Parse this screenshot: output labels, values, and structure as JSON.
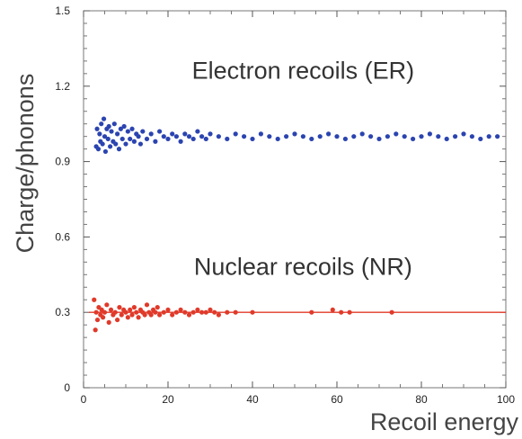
{
  "chart_data": {
    "type": "scatter",
    "xlabel": "Recoil energy",
    "ylabel": "Charge/phonons",
    "xlim": [
      0,
      100
    ],
    "ylim": [
      0,
      1.5
    ],
    "x_ticks": [
      0,
      20,
      40,
      60,
      80,
      100
    ],
    "x_tick_labels": [
      "0",
      "20",
      "40",
      "60",
      "80",
      "100"
    ],
    "y_ticks": [
      0,
      0.3,
      0.6,
      0.9,
      1.2,
      1.5
    ],
    "y_tick_labels": [
      "0",
      "0.3",
      "0.6",
      "0.9",
      "1.2",
      "1.5"
    ],
    "grid": false,
    "annotations": [
      {
        "text": "Electron recoils (ER)",
        "x": 52,
        "y": 1.23
      },
      {
        "text": "Nuclear recoils (NR)",
        "x": 52,
        "y": 0.45
      }
    ],
    "reference_lines": [
      {
        "y": 0.3,
        "color": "#e03a2a"
      }
    ],
    "series": [
      {
        "color": "#2b44b0",
        "points": [
          [
            3,
            0.96
          ],
          [
            3.2,
            1.03
          ],
          [
            3.5,
            0.95
          ],
          [
            3.8,
            1.01
          ],
          [
            4,
            0.98
          ],
          [
            4.2,
            1.05
          ],
          [
            4.5,
            0.97
          ],
          [
            4.8,
            1.07
          ],
          [
            5,
            1.0
          ],
          [
            5.2,
            0.94
          ],
          [
            5.5,
            1.03
          ],
          [
            5.8,
            0.99
          ],
          [
            6,
            1.04
          ],
          [
            6.3,
            0.96
          ],
          [
            6.6,
            1.02
          ],
          [
            7,
            0.98
          ],
          [
            7.3,
            1.05
          ],
          [
            7.6,
            0.97
          ],
          [
            8,
            1.01
          ],
          [
            8.4,
            0.95
          ],
          [
            8.8,
            1.03
          ],
          [
            9.2,
            0.99
          ],
          [
            9.6,
            1.04
          ],
          [
            10,
            0.97
          ],
          [
            10.5,
            1.02
          ],
          [
            11,
            0.99
          ],
          [
            11.5,
            1.03
          ],
          [
            12,
            0.98
          ],
          [
            12.5,
            1.01
          ],
          [
            13,
            1.0
          ],
          [
            13.5,
            0.97
          ],
          [
            14,
            1.02
          ],
          [
            15,
            0.99
          ],
          [
            16,
            1.01
          ],
          [
            17,
            0.98
          ],
          [
            18,
            1.02
          ],
          [
            19,
            1.0
          ],
          [
            20,
            0.99
          ],
          [
            21,
            1.01
          ],
          [
            22,
            1.0
          ],
          [
            23,
            0.98
          ],
          [
            24,
            1.01
          ],
          [
            25,
            1.0
          ],
          [
            26,
            0.99
          ],
          [
            27,
            1.02
          ],
          [
            28,
            1.0
          ],
          [
            29,
            0.99
          ],
          [
            30,
            1.01
          ],
          [
            32,
            1.0
          ],
          [
            34,
            0.99
          ],
          [
            36,
            1.01
          ],
          [
            38,
            1.0
          ],
          [
            40,
            0.99
          ],
          [
            42,
            1.01
          ],
          [
            44,
            1.0
          ],
          [
            46,
            0.99
          ],
          [
            48,
            1.0
          ],
          [
            50,
            1.01
          ],
          [
            52,
            1.0
          ],
          [
            54,
            0.99
          ],
          [
            56,
            1.0
          ],
          [
            58,
            1.01
          ],
          [
            60,
            1.0
          ],
          [
            62,
            0.99
          ],
          [
            64,
            1.0
          ],
          [
            66,
            1.01
          ],
          [
            68,
            1.0
          ],
          [
            70,
            0.99
          ],
          [
            72,
            1.0
          ],
          [
            74,
            1.01
          ],
          [
            76,
            1.0
          ],
          [
            78,
            0.99
          ],
          [
            80,
            1.0
          ],
          [
            82,
            1.01
          ],
          [
            84,
            1.0
          ],
          [
            86,
            0.99
          ],
          [
            88,
            1.0
          ],
          [
            90,
            1.01
          ],
          [
            92,
            1.0
          ],
          [
            94,
            0.99
          ],
          [
            96,
            1.0
          ],
          [
            98,
            1.0
          ]
        ]
      },
      {
        "color": "#e03a2a",
        "points": [
          [
            2.5,
            0.35
          ],
          [
            2.8,
            0.23
          ],
          [
            3,
            0.3
          ],
          [
            3.3,
            0.27
          ],
          [
            3.6,
            0.32
          ],
          [
            4,
            0.29
          ],
          [
            4.3,
            0.31
          ],
          [
            4.6,
            0.28
          ],
          [
            5,
            0.3
          ],
          [
            5.5,
            0.33
          ],
          [
            6,
            0.26
          ],
          [
            6.5,
            0.31
          ],
          [
            7,
            0.29
          ],
          [
            7.5,
            0.3
          ],
          [
            8,
            0.27
          ],
          [
            8.5,
            0.32
          ],
          [
            9,
            0.29
          ],
          [
            9.5,
            0.31
          ],
          [
            10,
            0.3
          ],
          [
            10.5,
            0.28
          ],
          [
            11,
            0.31
          ],
          [
            11.5,
            0.29
          ],
          [
            12,
            0.32
          ],
          [
            12.5,
            0.3
          ],
          [
            13,
            0.28
          ],
          [
            13.5,
            0.31
          ],
          [
            14,
            0.3
          ],
          [
            14.5,
            0.29
          ],
          [
            15,
            0.33
          ],
          [
            15.5,
            0.3
          ],
          [
            16,
            0.29
          ],
          [
            16.5,
            0.31
          ],
          [
            17,
            0.3
          ],
          [
            17.5,
            0.32
          ],
          [
            18,
            0.29
          ],
          [
            19,
            0.3
          ],
          [
            20,
            0.31
          ],
          [
            21,
            0.29
          ],
          [
            22,
            0.3
          ],
          [
            23,
            0.31
          ],
          [
            24,
            0.3
          ],
          [
            25,
            0.29
          ],
          [
            26,
            0.3
          ],
          [
            27,
            0.31
          ],
          [
            28,
            0.3
          ],
          [
            29,
            0.3
          ],
          [
            30,
            0.31
          ],
          [
            31,
            0.3
          ],
          [
            32,
            0.29
          ],
          [
            34,
            0.3
          ],
          [
            36,
            0.3
          ],
          [
            40,
            0.3
          ],
          [
            54,
            0.3
          ],
          [
            59,
            0.31
          ],
          [
            61,
            0.3
          ],
          [
            63,
            0.3
          ],
          [
            73,
            0.3
          ]
        ]
      }
    ]
  }
}
